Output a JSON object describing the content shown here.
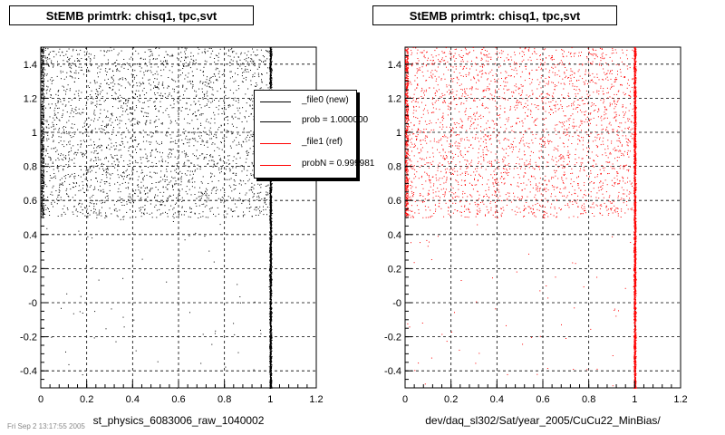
{
  "panels": [
    {
      "title": "StEMB primtrk: chisq1, tpc,svt",
      "xlabel": "st_physics_6083006_raw_1040002",
      "color": "#000000"
    },
    {
      "title": "StEMB primtrk: chisq1, tpc,svt",
      "xlabel": "dev/daq_sl302/Sat/year_2005/CuCu22_MinBias/",
      "color": "#ff0000"
    }
  ],
  "legend": {
    "entries": [
      {
        "label": "_file0 (new)",
        "color": "#000000"
      },
      {
        "label": "prob = 1.000000",
        "color": "#000000"
      },
      {
        "label": "_file1 (ref)",
        "color": "#ff0000"
      },
      {
        "label": "probN = 0.999981",
        "color": "#ff0000"
      }
    ]
  },
  "footer": "Fri Sep  2 13:17:55 2005",
  "chart_data": [
    {
      "type": "scatter",
      "title": "StEMB primtrk: chisq1, tpc,svt",
      "xlabel": "st_physics_6083006_raw_1040002",
      "ylabel": "",
      "xlim": [
        0,
        1.2
      ],
      "ylim": [
        -0.5,
        1.5
      ],
      "xticks": [
        0,
        0.2,
        0.4,
        0.6,
        0.8,
        1,
        1.2
      ],
      "yticks": [
        -0.4,
        -0.2,
        0,
        0.2,
        0.4,
        0.6,
        0.8,
        1,
        1.2,
        1.4
      ],
      "ytick_labels": [
        "-0.4",
        "-0.2",
        "-0",
        "0.2",
        "0.4",
        "0.6",
        "0.8",
        "1",
        "1.2",
        "1.4"
      ],
      "grid": true,
      "legend_position": "top-right",
      "series": [
        {
          "name": "_file0 (new)",
          "color": "#000000",
          "regions": [
            {
              "x": [
                0,
                1.0
              ],
              "y": [
                0.5,
                1.5
              ],
              "density": "high"
            },
            {
              "x": [
                0.98,
                1.02
              ],
              "y": [
                -0.5,
                1.5
              ],
              "density": "very high"
            },
            {
              "x": [
                0,
                1.0
              ],
              "y": [
                -0.5,
                0.5
              ],
              "density": "sparse"
            }
          ]
        }
      ]
    },
    {
      "type": "scatter",
      "title": "StEMB primtrk: chisq1, tpc,svt",
      "xlabel": "dev/daq_sl302/Sat/year_2005/CuCu22_MinBias/",
      "ylabel": "",
      "xlim": [
        0,
        1.2
      ],
      "ylim": [
        -0.5,
        1.5
      ],
      "xticks": [
        0,
        0.2,
        0.4,
        0.6,
        0.8,
        1,
        1.2
      ],
      "yticks": [
        -0.4,
        -0.2,
        0,
        0.2,
        0.4,
        0.6,
        0.8,
        1,
        1.2,
        1.4
      ],
      "ytick_labels": [
        "-0.4",
        "-0.2",
        "-0",
        "0.2",
        "0.4",
        "0.6",
        "0.8",
        "1",
        "1.2",
        "1.4"
      ],
      "grid": true,
      "series": [
        {
          "name": "_file1 (ref)",
          "color": "#ff0000",
          "regions": [
            {
              "x": [
                0,
                1.0
              ],
              "y": [
                0.5,
                1.5
              ],
              "density": "high"
            },
            {
              "x": [
                0.98,
                1.02
              ],
              "y": [
                -0.5,
                1.5
              ],
              "density": "very high"
            },
            {
              "x": [
                0,
                1.0
              ],
              "y": [
                -0.5,
                0.5
              ],
              "density": "sparse"
            }
          ]
        }
      ]
    }
  ]
}
